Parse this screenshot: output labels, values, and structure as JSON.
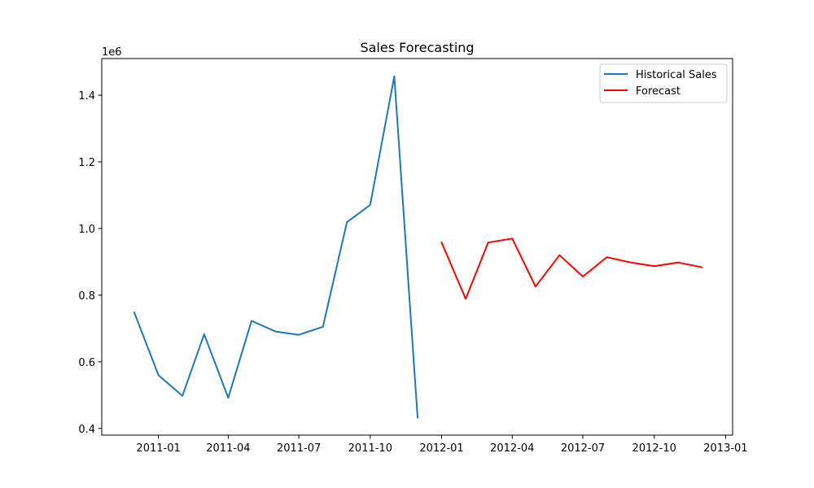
{
  "chart_data": {
    "type": "line",
    "title": "Sales Forecasting",
    "xlabel": "",
    "ylabel": "",
    "y_offset_label": "1e6",
    "xlim": [
      "2010-10-20",
      "2013-01-10"
    ],
    "ylim": [
      0.38,
      1.51
    ],
    "y_scale_factor": 1000000,
    "x_tick_labels": [
      "2011-01",
      "2011-04",
      "2011-07",
      "2011-10",
      "2012-01",
      "2012-04",
      "2012-07",
      "2012-10",
      "2013-01"
    ],
    "y_ticks": [
      0.4,
      0.6,
      0.8,
      1.0,
      1.2,
      1.4
    ],
    "y_tick_labels": [
      "0.4",
      "0.6",
      "0.8",
      "1.0",
      "1.2",
      "1.4"
    ],
    "grid": false,
    "legend_position": "top-right",
    "series": [
      {
        "name": "Historical Sales",
        "color": "#1f77b4",
        "x": [
          "2010-12-01",
          "2011-01-01",
          "2011-02-01",
          "2011-03-01",
          "2011-04-01",
          "2011-05-01",
          "2011-06-01",
          "2011-07-01",
          "2011-08-01",
          "2011-09-01",
          "2011-10-01",
          "2011-11-01",
          "2011-12-01"
        ],
        "y": [
          748000,
          560000,
          498000,
          683000,
          492000,
          723000,
          691000,
          681000,
          705000,
          1019000,
          1071000,
          1457000,
          433000
        ]
      },
      {
        "name": "Forecast",
        "color": "#ff0000",
        "x": [
          "2012-01-01",
          "2012-02-01",
          "2012-03-01",
          "2012-04-01",
          "2012-05-01",
          "2012-06-01",
          "2012-07-01",
          "2012-08-01",
          "2012-09-01",
          "2012-10-01",
          "2012-11-01",
          "2012-12-01"
        ],
        "y": [
          958000,
          789000,
          958000,
          970000,
          826000,
          920000,
          856000,
          914000,
          898000,
          887000,
          898000,
          884000
        ]
      }
    ]
  }
}
